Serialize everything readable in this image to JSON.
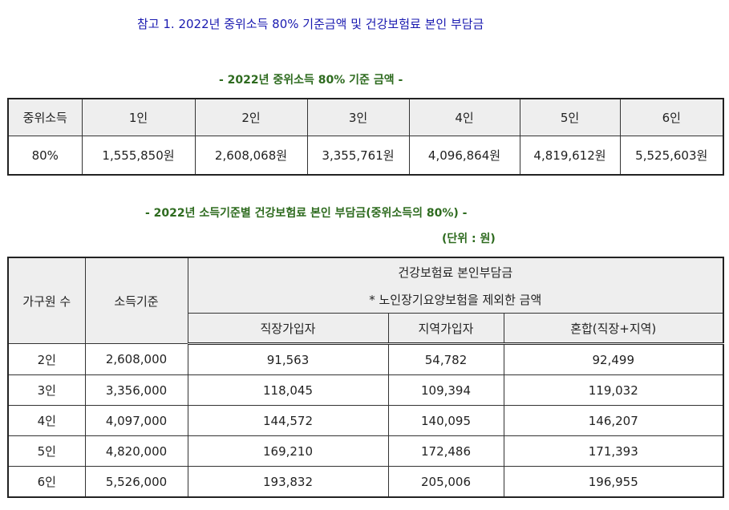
{
  "title": "참고 1. 2022년 중위소득 80% 기준금액 및 건강보험료 본인 부담금",
  "table1": {
    "subtitle": "- 2022년 중위소득 80% 기준 금액 -",
    "headers": [
      "중위소득",
      "1인",
      "2인",
      "3인",
      "4인",
      "5인",
      "6인"
    ],
    "row": [
      "80%",
      "1,555,850원",
      "2,608,068원",
      "3,355,761원",
      "4,096,864원",
      "4,819,612원",
      "5,525,603원"
    ]
  },
  "table2": {
    "subtitle": "- 2022년 소득기준별 건강보험료 본인 부담금(중위소득의 80%) -",
    "unit": "(단위 : 원)",
    "header": {
      "household": "가구원 수",
      "income": "소득기준",
      "premium": "건강보험료 본인부담금",
      "note": "* 노인장기요양보험을 제외한 금액",
      "employee": "직장가입자",
      "regional": "지역가입자",
      "mixed": "혼합(직장+지역)"
    },
    "rows": [
      [
        "2인",
        "2,608,000",
        "91,563",
        "54,782",
        "92,499"
      ],
      [
        "3인",
        "3,356,000",
        "118,045",
        "109,394",
        "119,032"
      ],
      [
        "4인",
        "4,097,000",
        "144,572",
        "140,095",
        "146,207"
      ],
      [
        "5인",
        "4,820,000",
        "169,210",
        "172,486",
        "171,393"
      ],
      [
        "6인",
        "5,526,000",
        "193,832",
        "205,006",
        "196,955"
      ]
    ]
  }
}
